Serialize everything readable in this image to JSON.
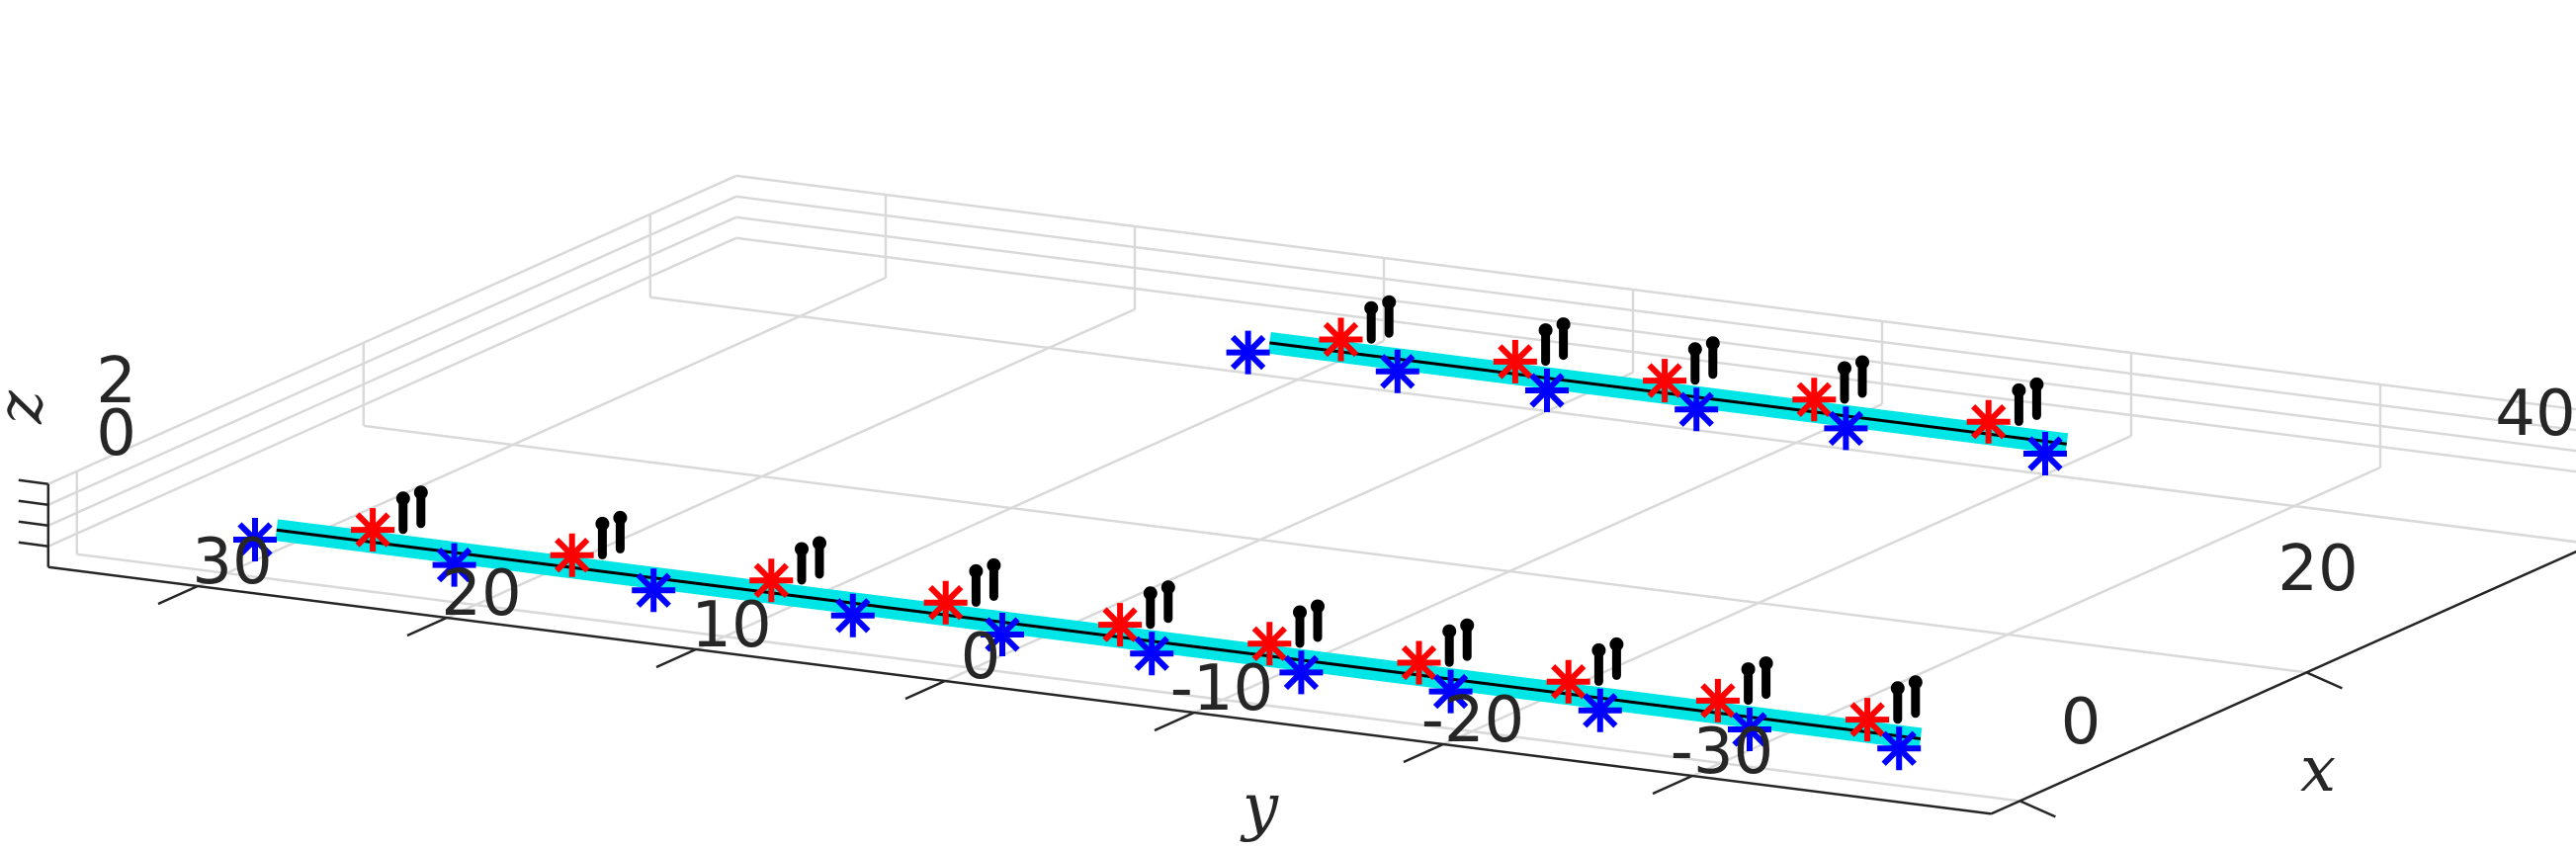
{
  "chart_data": {
    "type": "scatter3d",
    "title": "",
    "axes": {
      "x": {
        "label": "x",
        "ticks": [
          "0",
          "20",
          "40"
        ]
      },
      "y": {
        "label": "y",
        "ticks": [
          "30",
          "20",
          "10",
          "0",
          "-10",
          "-20",
          "-30"
        ]
      },
      "z": {
        "label": "z",
        "ticks": [
          "2",
          "0"
        ]
      }
    },
    "grid": true,
    "legend": "none",
    "series": [
      {
        "marker": "asterisk",
        "color": "#0000ff",
        "points": [
          {
            "x": 2,
            "y": 30,
            "z": 0
          },
          {
            "x": 2,
            "y": 22,
            "z": 0
          },
          {
            "x": 2,
            "y": 14,
            "z": 0
          },
          {
            "x": 2,
            "y": 6,
            "z": 0
          },
          {
            "x": 2,
            "y": 0,
            "z": 0
          },
          {
            "x": 2,
            "y": -6,
            "z": 0
          },
          {
            "x": 2,
            "y": -12,
            "z": 0
          },
          {
            "x": 2,
            "y": -18,
            "z": 0
          },
          {
            "x": 2,
            "y": -24,
            "z": 0
          },
          {
            "x": 2,
            "y": -30,
            "z": 0
          },
          {
            "x": 2,
            "y": -36,
            "z": 0
          },
          {
            "x": 40,
            "y": 12,
            "z": 0
          },
          {
            "x": 40,
            "y": 6,
            "z": 0
          },
          {
            "x": 40,
            "y": 0,
            "z": 0
          },
          {
            "x": 40,
            "y": -6,
            "z": 0
          },
          {
            "x": 40,
            "y": -12,
            "z": 0
          },
          {
            "x": 40,
            "y": -20,
            "z": 0
          }
        ]
      },
      {
        "marker": "asterisk",
        "color": "#ff0000",
        "points": [
          {
            "x": 5,
            "y": 27,
            "z": 0
          },
          {
            "x": 5,
            "y": 19,
            "z": 0
          },
          {
            "x": 5,
            "y": 11,
            "z": 0
          },
          {
            "x": 5,
            "y": 4,
            "z": 0
          },
          {
            "x": 5,
            "y": -3,
            "z": 0
          },
          {
            "x": 5,
            "y": -9,
            "z": 0
          },
          {
            "x": 5,
            "y": -15,
            "z": 0
          },
          {
            "x": 5,
            "y": -21,
            "z": 0
          },
          {
            "x": 5,
            "y": -27,
            "z": 0
          },
          {
            "x": 5,
            "y": -33,
            "z": 0
          },
          {
            "x": 43,
            "y": 10,
            "z": 0
          },
          {
            "x": 43,
            "y": 3,
            "z": 0
          },
          {
            "x": 43,
            "y": -3,
            "z": 0
          },
          {
            "x": 43,
            "y": -9,
            "z": 0
          },
          {
            "x": 43,
            "y": -16,
            "z": 0
          }
        ]
      },
      {
        "marker": "dot-stem",
        "color": "#000000",
        "points": [
          {
            "x": 6,
            "y": 26,
            "z": 1.5
          },
          {
            "x": 6,
            "y": 18,
            "z": 1.5
          },
          {
            "x": 6,
            "y": 10,
            "z": 1.5
          },
          {
            "x": 6,
            "y": 3,
            "z": 1.5
          },
          {
            "x": 6,
            "y": -4,
            "z": 1.5
          },
          {
            "x": 6,
            "y": -10,
            "z": 1.5
          },
          {
            "x": 6,
            "y": -16,
            "z": 1.5
          },
          {
            "x": 6,
            "y": -22,
            "z": 1.5
          },
          {
            "x": 6,
            "y": -28,
            "z": 1.5
          },
          {
            "x": 6,
            "y": -34,
            "z": 1.5
          },
          {
            "x": 44,
            "y": 9,
            "z": 1.5
          },
          {
            "x": 44,
            "y": 2,
            "z": 1.5
          },
          {
            "x": 44,
            "y": -4,
            "z": 1.5
          },
          {
            "x": 44,
            "y": -10,
            "z": 1.5
          },
          {
            "x": 44,
            "y": -17,
            "z": 1.5
          }
        ]
      }
    ]
  },
  "colors": {
    "blue": "#0000ff",
    "red": "#ff0000",
    "black": "#000000",
    "cyan": "#00e5e5",
    "grid": "#d9d9d9",
    "axis": "#262626"
  }
}
